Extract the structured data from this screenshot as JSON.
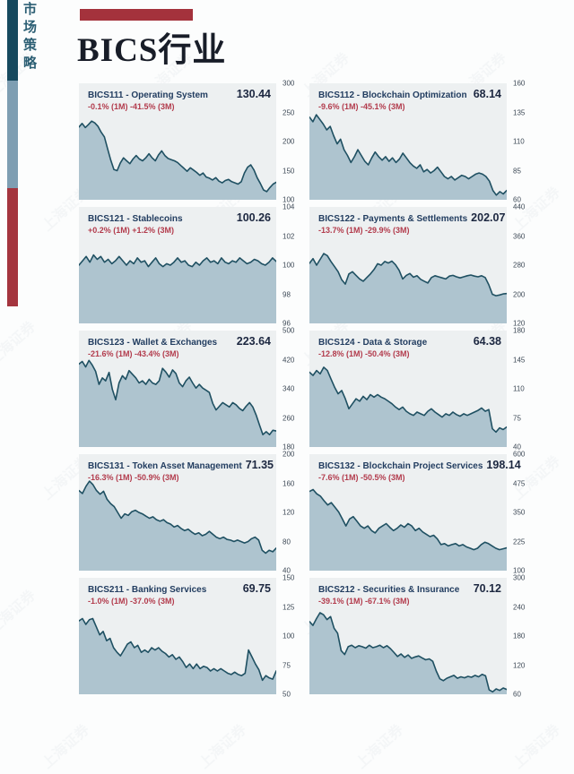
{
  "sidebar": {
    "vertical_label": "市场策略",
    "strip_colors": {
      "teal": "#16495e",
      "slate": "#7e9eb2",
      "red": "#a4353e"
    }
  },
  "header": {
    "title": "BICS行业",
    "accent_bar_color": "#a4323c"
  },
  "watermark": {
    "text": "上海证券"
  },
  "colors": {
    "panel_background": "#edf0f1",
    "area_fill": "#aec4cf",
    "line": "#1f5062",
    "change_negative": "#b23b4c"
  },
  "chart_data": [
    {
      "type": "area",
      "title": "BICS111 - Operating System",
      "value": "130.44",
      "change": "-0.1% (1M) -41.5% (3M)",
      "ticks": [
        300,
        250,
        200,
        150,
        100
      ],
      "ylim": [
        100,
        300
      ],
      "values": [
        225,
        231,
        224,
        229,
        235,
        232,
        226,
        216,
        208,
        188,
        168,
        152,
        150,
        163,
        172,
        167,
        162,
        170,
        176,
        170,
        167,
        172,
        179,
        172,
        167,
        177,
        184,
        176,
        171,
        169,
        167,
        164,
        159,
        154,
        149,
        155,
        151,
        147,
        142,
        146,
        139,
        137,
        134,
        138,
        132,
        129,
        133,
        135,
        131,
        129,
        127,
        131,
        146,
        156,
        160,
        151,
        138,
        128,
        117,
        114,
        121,
        127,
        130
      ]
    },
    {
      "type": "area",
      "title": "BICS112 - Blockchain Optimization",
      "value": "68.14",
      "change": "-9.6% (1M) -45.1% (3M)",
      "ticks": [
        160,
        135,
        110,
        85,
        60
      ],
      "ylim": [
        60,
        160
      ],
      "values": [
        131,
        127,
        133,
        129,
        125,
        120,
        123,
        115,
        108,
        112,
        103,
        98,
        92,
        97,
        103,
        98,
        93,
        90,
        96,
        101,
        97,
        94,
        97,
        93,
        96,
        92,
        95,
        100,
        96,
        92,
        89,
        87,
        90,
        84,
        86,
        83,
        85,
        88,
        84,
        80,
        78,
        80,
        77,
        79,
        81,
        80,
        78,
        80,
        82,
        83,
        82,
        80,
        76,
        68,
        64,
        67,
        65,
        68
      ]
    },
    {
      "type": "area",
      "title": "BICS121 - Stablecoins",
      "value": "100.26",
      "change": "+0.2% (1M) +1.2% (3M)",
      "ticks": [
        104,
        102,
        100,
        98,
        96
      ],
      "ylim": [
        96,
        104
      ],
      "values": [
        100.0,
        100.3,
        100.6,
        100.2,
        100.7,
        100.4,
        100.6,
        100.2,
        100.4,
        100.1,
        100.3,
        100.6,
        100.3,
        100.0,
        100.3,
        100.1,
        100.5,
        100.2,
        100.3,
        99.9,
        100.2,
        100.5,
        100.1,
        99.9,
        100.1,
        100.0,
        100.2,
        100.5,
        100.2,
        100.3,
        100.0,
        99.9,
        100.2,
        100.0,
        100.3,
        100.5,
        100.2,
        100.3,
        100.1,
        100.5,
        100.2,
        100.1,
        100.3,
        100.2,
        100.5,
        100.3,
        100.1,
        100.2,
        100.4,
        100.3,
        100.1,
        100.0,
        100.2,
        100.5,
        100.26
      ]
    },
    {
      "type": "area",
      "title": "BICS122 - Payments & Settlements",
      "value": "202.07",
      "change": "-13.7% (1M) -29.9% (3M)",
      "ticks": [
        440,
        360,
        280,
        200,
        120
      ],
      "ylim": [
        120,
        440
      ],
      "values": [
        285,
        298,
        280,
        296,
        312,
        306,
        290,
        276,
        262,
        240,
        228,
        256,
        262,
        252,
        242,
        236,
        246,
        256,
        268,
        284,
        280,
        290,
        286,
        291,
        281,
        266,
        242,
        252,
        257,
        247,
        251,
        241,
        236,
        231,
        246,
        251,
        248,
        245,
        242,
        250,
        252,
        248,
        245,
        248,
        251,
        253,
        250,
        248,
        251,
        246,
        226,
        200,
        196,
        198,
        201,
        202
      ]
    },
    {
      "type": "area",
      "title": "BICS123 - Wallet & Exchanges",
      "value": "223.64",
      "change": "-21.6% (1M) -43.4% (3M)",
      "ticks": [
        500,
        420,
        340,
        260,
        180
      ],
      "ylim": [
        180,
        500
      ],
      "values": [
        408,
        415,
        400,
        418,
        405,
        388,
        352,
        370,
        362,
        385,
        338,
        310,
        356,
        376,
        366,
        390,
        380,
        370,
        356,
        362,
        352,
        366,
        356,
        352,
        362,
        396,
        386,
        372,
        392,
        382,
        356,
        346,
        362,
        372,
        356,
        342,
        352,
        342,
        336,
        330,
        300,
        282,
        292,
        302,
        296,
        290,
        302,
        296,
        286,
        280,
        292,
        302,
        290,
        268,
        240,
        214,
        222,
        214,
        226,
        224
      ]
    },
    {
      "type": "area",
      "title": "BICS124 - Data & Storage",
      "value": "64.38",
      "change": "-12.8% (1M) -50.4% (3M)",
      "ticks": [
        180,
        145,
        110,
        75,
        40
      ],
      "ylim": [
        40,
        180
      ],
      "values": [
        130,
        126,
        132,
        128,
        136,
        132,
        122,
        112,
        104,
        108,
        98,
        86,
        92,
        98,
        95,
        101,
        97,
        103,
        100,
        103,
        100,
        98,
        95,
        92,
        88,
        85,
        88,
        83,
        80,
        78,
        82,
        80,
        78,
        83,
        86,
        82,
        79,
        76,
        80,
        78,
        82,
        79,
        77,
        80,
        78,
        80,
        82,
        84,
        87,
        83,
        85,
        62,
        58,
        63,
        61,
        64
      ]
    },
    {
      "type": "area",
      "title": "BICS131 - Token Asset Management",
      "value": "71.35",
      "change": "-16.3% (1M) -50.9% (3M)",
      "ticks": [
        200,
        160,
        120,
        80,
        40
      ],
      "ylim": [
        40,
        200
      ],
      "values": [
        150,
        146,
        156,
        163,
        158,
        150,
        145,
        149,
        138,
        132,
        128,
        120,
        112,
        118,
        116,
        121,
        123,
        120,
        118,
        115,
        112,
        114,
        110,
        108,
        110,
        106,
        104,
        100,
        102,
        98,
        95,
        97,
        93,
        90,
        92,
        88,
        90,
        94,
        90,
        86,
        84,
        86,
        83,
        82,
        80,
        82,
        80,
        78,
        80,
        84,
        86,
        82,
        68,
        64,
        68,
        66,
        71
      ]
    },
    {
      "type": "area",
      "title": "BICS132 - Blockchain Project Services",
      "value": "198.14",
      "change": "-7.6% (1M) -50.5% (3M)",
      "ticks": [
        600,
        475,
        350,
        225,
        100
      ],
      "ylim": [
        100,
        600
      ],
      "values": [
        440,
        448,
        430,
        420,
        400,
        382,
        392,
        372,
        352,
        322,
        292,
        322,
        332,
        312,
        292,
        282,
        292,
        272,
        262,
        282,
        292,
        302,
        286,
        272,
        282,
        296,
        286,
        302,
        292,
        272,
        282,
        266,
        256,
        246,
        252,
        236,
        212,
        216,
        206,
        212,
        216,
        206,
        212,
        202,
        196,
        190,
        196,
        212,
        222,
        216,
        206,
        196,
        190,
        194,
        198
      ]
    },
    {
      "type": "area",
      "title": "BICS211 - Banking Services",
      "value": "69.75",
      "change": "-1.0% (1M) -37.0% (3M)",
      "ticks": [
        150,
        125,
        100,
        75,
        50
      ],
      "ylim": [
        50,
        150
      ],
      "values": [
        113,
        115,
        110,
        114,
        115,
        108,
        101,
        104,
        96,
        98,
        90,
        86,
        83,
        88,
        93,
        95,
        90,
        92,
        86,
        88,
        86,
        90,
        88,
        90,
        87,
        85,
        82,
        84,
        80,
        82,
        78,
        73,
        76,
        72,
        76,
        72,
        74,
        73,
        70,
        72,
        70,
        72,
        70,
        68,
        67,
        69,
        67,
        66,
        68,
        88,
        82,
        76,
        71,
        62,
        66,
        64,
        63,
        70
      ]
    },
    {
      "type": "area",
      "title": "BICS212 - Securities & Insurance",
      "value": "70.12",
      "change": "-39.1% (1M) -67.1% (3M)",
      "ticks": [
        300,
        240,
        180,
        120,
        60
      ],
      "ylim": [
        60,
        300
      ],
      "values": [
        210,
        202,
        216,
        228,
        224,
        214,
        220,
        196,
        186,
        150,
        142,
        158,
        161,
        156,
        160,
        158,
        155,
        161,
        156,
        158,
        161,
        156,
        160,
        154,
        146,
        138,
        143,
        136,
        141,
        134,
        137,
        139,
        135,
        131,
        133,
        128,
        108,
        92,
        88,
        93,
        96,
        99,
        93,
        96,
        94,
        97,
        95,
        99,
        96,
        101,
        98,
        69,
        65,
        71,
        68,
        73,
        70
      ]
    }
  ]
}
